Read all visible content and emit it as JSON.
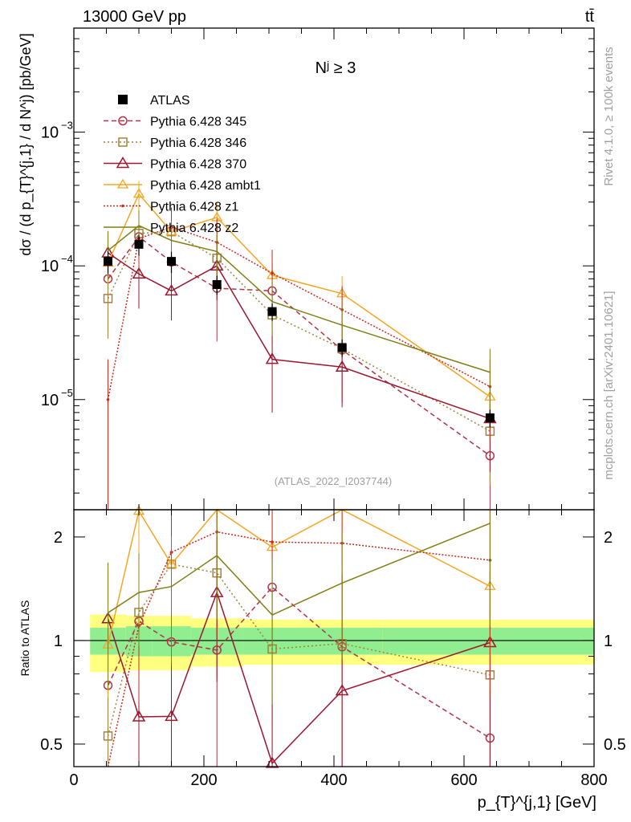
{
  "header": {
    "energy_label": "13000 GeV pp",
    "process_label": "tt̄"
  },
  "annotations": {
    "rivet": "Rivet 4.1.0, ≥ 100k events",
    "mcplots": "mcplots.cern.ch [arXiv:2401.10621]",
    "analysis": "(ATLAS_2022_I2037744)",
    "panel_title": "Nʲ ≥ 3"
  },
  "chart_data": {
    "type": "line",
    "title": "N^j ≥ 3",
    "xlabel": "p_{T}^{j,1} [GeV]",
    "ylabel": "dσ / (d p_{T}^{j,1} / d N^j) [pb/GeV]",
    "ratio_ylabel": "Ratio to ATLAS",
    "xlim": [
      0,
      800
    ],
    "ylim_main": [
      1.5e-06,
      0.006
    ],
    "ylim_ratio": [
      0.43,
      2.4
    ],
    "y_scale": "log",
    "x_ticks": [
      "0",
      "200",
      "400",
      "600",
      "800"
    ],
    "y_ticks_main": [
      "10^{-5}",
      "10^{-4}",
      "10^{-3}"
    ],
    "y_ticks_ratio": [
      "0.5",
      "1",
      "2"
    ],
    "x": [
      52.5,
      100,
      150,
      220,
      305,
      412.5,
      640
    ],
    "data": {
      "name": "ATLAS",
      "values": [
        0.000108,
        0.000145,
        0.000108,
        7.25e-05,
        4.55e-05,
        2.45e-05,
        7.3e-06
      ],
      "uncertainty_inner": [
        0.09,
        0.1,
        0.1,
        0.09,
        0.09,
        0.09,
        0.09
      ],
      "uncertainty_outer": [
        0.19,
        0.18,
        0.18,
        0.16,
        0.15,
        0.15,
        0.15
      ],
      "bin_edges": [
        25,
        80,
        120,
        180,
        260,
        350,
        475,
        800
      ],
      "color": "#000000"
    },
    "series": [
      {
        "name": "Pythia 6.428 345",
        "color": "#b2334b",
        "marker": "circle",
        "dash": "6,4",
        "values": [
          8e-05,
          0.000165,
          0.000107,
          6.8e-05,
          6.5e-05,
          2.35e-05,
          3.8e-06
        ],
        "errors": [
          0.6,
          0.35,
          0.6,
          0.6,
          0.6,
          0.6,
          0.6
        ]
      },
      {
        "name": "Pythia 6.428 346",
        "color": "#a2823c",
        "marker": "square",
        "dash": "2,3",
        "values": [
          5.7e-05,
          0.000175,
          0.00018,
          0.000114,
          4.3e-05,
          2.4e-05,
          5.8e-06
        ],
        "errors": [
          0.5,
          0.4,
          0.45,
          0.5,
          0.5,
          0.6,
          0.6
        ]
      },
      {
        "name": "Pythia 6.428 370",
        "color": "#9b1830",
        "marker": "triangle",
        "dash": "",
        "values": [
          0.000125,
          8.7e-05,
          6.5e-05,
          0.0001,
          2e-05,
          1.75e-05,
          7.2e-06
        ],
        "errors": [
          0.4,
          0.45,
          0.4,
          0.45,
          0.6,
          0.5,
          0.6
        ]
      },
      {
        "name": "Pythia 6.428 ambt1",
        "color": "#f5a623",
        "marker": "triangle-filled",
        "dash": "",
        "values": [
          0.000105,
          0.000345,
          0.00018,
          0.00023,
          8.5e-05,
          6.2e-05,
          1.05e-05
        ],
        "errors": [
          0.3,
          0.25,
          0.4,
          0.3,
          0.35,
          0.35,
          0.5
        ]
      },
      {
        "name": "Pythia 6.428 z1",
        "color": "#cc2a1e",
        "marker": "dot",
        "dash": "2,2",
        "values": [
          1e-05,
          0.00016,
          0.000195,
          0.00015,
          8.8e-05,
          4.7e-05,
          1.25e-05
        ],
        "errors": [
          1.0,
          0.4,
          0.4,
          0.5,
          0.5,
          0.5,
          0.6
        ]
      },
      {
        "name": "Pythia 6.428 z2",
        "color": "#7f7f14",
        "marker": "none",
        "dash": "",
        "values": [
          0.00013,
          0.0002,
          0.000155,
          0.000128,
          5.4e-05,
          3.6e-05,
          1.6e-05
        ],
        "errors": [
          0.4,
          0.3,
          0.4,
          0.35,
          0.45,
          0.4,
          0.5
        ]
      }
    ],
    "legend": {
      "placement": "top-left"
    }
  }
}
